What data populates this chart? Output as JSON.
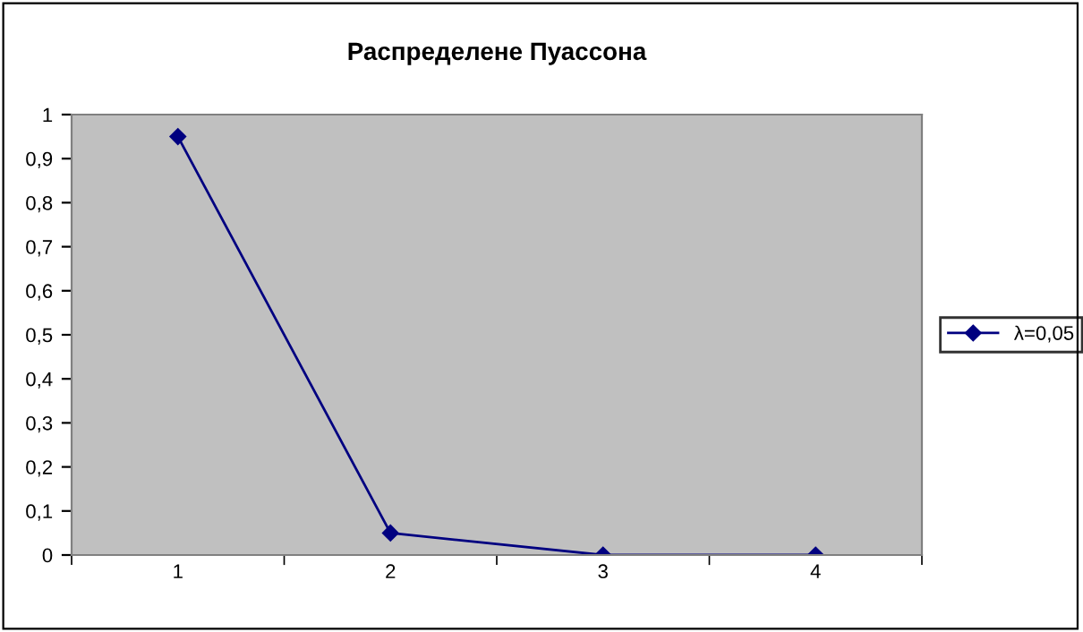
{
  "chart_data": {
    "type": "line",
    "title": "Распределене Пуассона",
    "categories": [
      "1",
      "2",
      "3",
      "4"
    ],
    "series": [
      {
        "name": "λ=0,05",
        "color": "#000080",
        "values": [
          0.95,
          0.05,
          0.0,
          0.0
        ]
      }
    ],
    "ylim": [
      0,
      1
    ],
    "yticks": [
      0,
      {
        "value": 0.1,
        "label": "0,1"
      },
      {
        "value": 0.2,
        "label": "0,2"
      },
      {
        "value": 0.3,
        "label": "0,3"
      },
      {
        "value": 0.4,
        "label": "0,4"
      },
      {
        "value": 0.5,
        "label": "0,5"
      },
      {
        "value": 0.6,
        "label": "0,6"
      },
      {
        "value": 0.7,
        "label": "0,7"
      },
      {
        "value": 0.8,
        "label": "0,8"
      },
      {
        "value": 0.9,
        "label": "0,9"
      },
      1
    ],
    "grid": false,
    "legend": "right",
    "marker": "diamond",
    "line_style": "solid"
  }
}
